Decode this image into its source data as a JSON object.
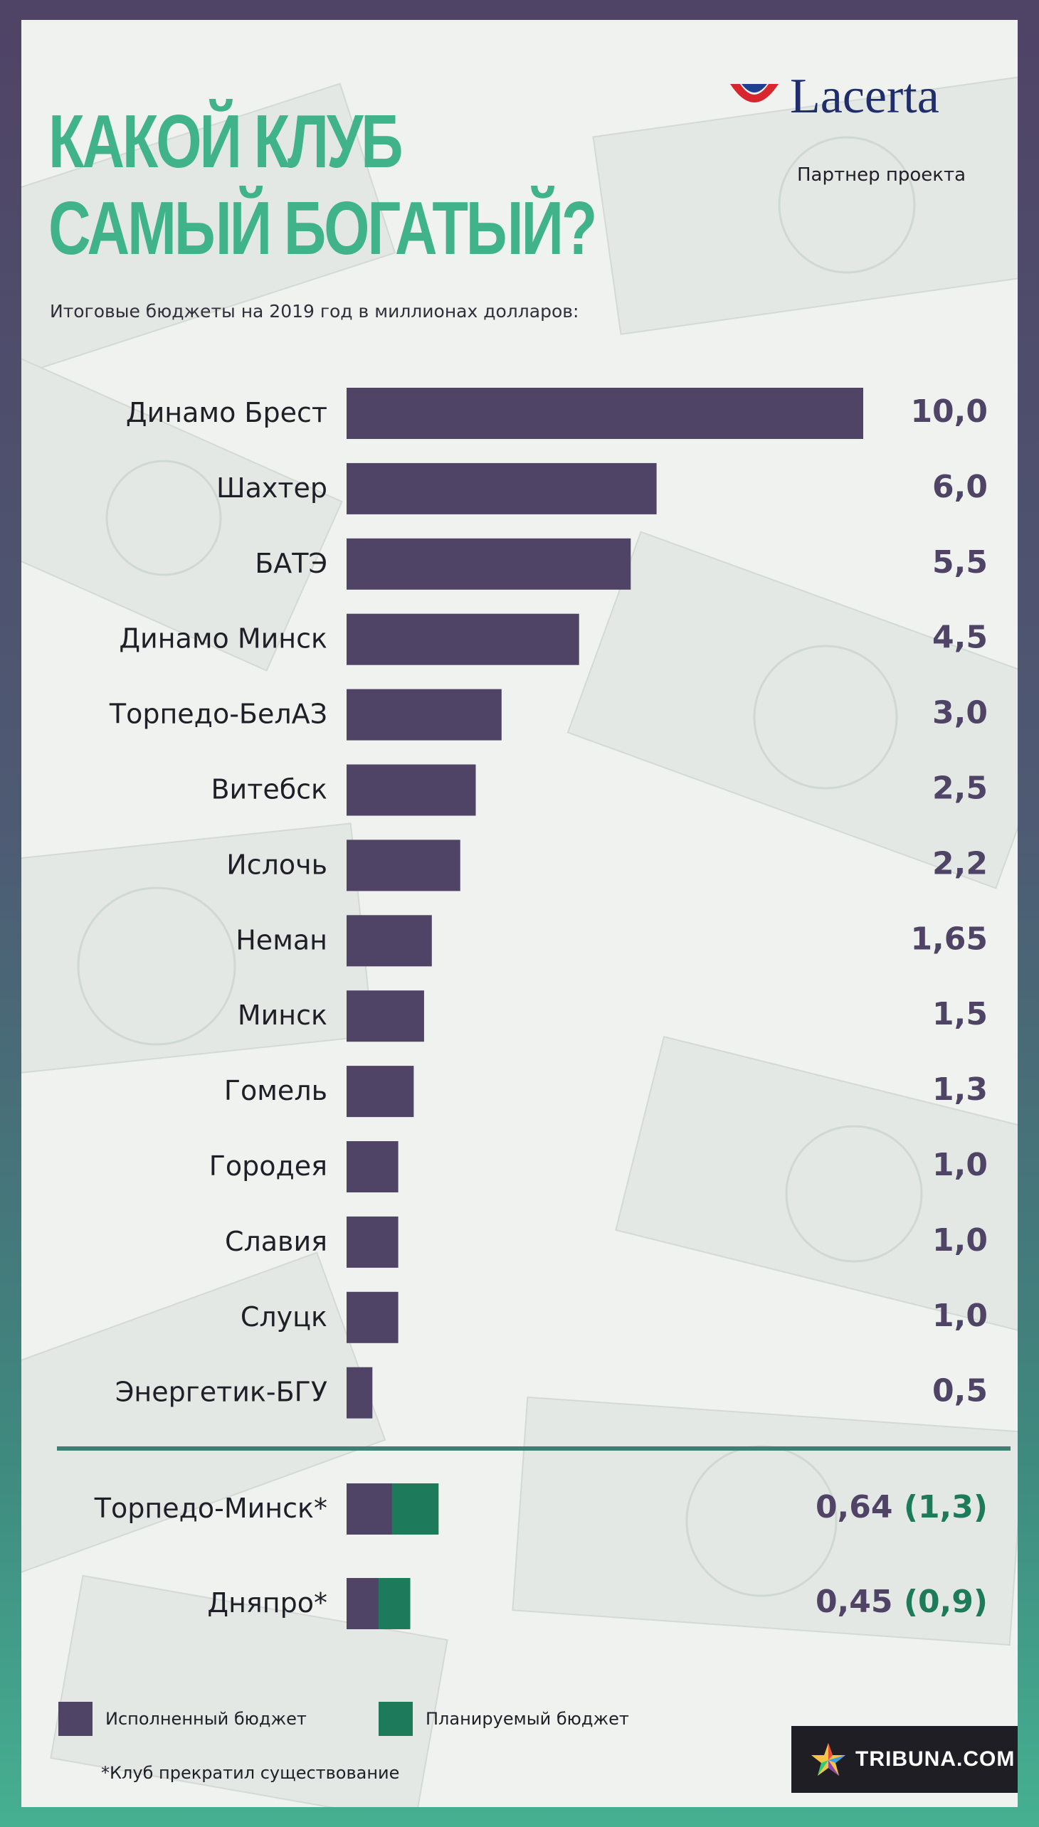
{
  "header": {
    "title_line1": "КАКОЙ КЛУБ",
    "title_line2": "САМЫЙ БОГАТЫЙ?",
    "subtitle": "Итоговые бюджеты на 2019 год в миллионах долларов:"
  },
  "sponsor": {
    "name": "Lacerta",
    "caption": "Партнер проекта"
  },
  "colors": {
    "title": "#41b38a",
    "executed": "#4f4366",
    "planned": "#1d7a5b",
    "planned_text": "#1d7a5b",
    "divider": "#3f7f73"
  },
  "chart_data": {
    "type": "bar",
    "orientation": "horizontal",
    "categories": [
      "Динамо Брест",
      "Шахтер",
      "БАТЭ",
      "Динамо Минск",
      "Торпедо-БелАЗ",
      "Витебск",
      "Ислочь",
      "Неман",
      "Минск",
      "Гомель",
      "Городея",
      "Славия",
      "Слуцк",
      "Энергетик-БГУ"
    ],
    "values": [
      10.0,
      6.0,
      5.5,
      4.5,
      3.0,
      2.5,
      2.2,
      1.65,
      1.5,
      1.3,
      1.0,
      1.0,
      1.0,
      0.5
    ],
    "value_labels": [
      "10,0",
      "6,0",
      "5,5",
      "4,5",
      "3,0",
      "2,5",
      "2,2",
      "1,65",
      "1,5",
      "1,3",
      "1,0",
      "1,0",
      "1,0",
      "0,5"
    ],
    "extra": {
      "categories": [
        "Торпедо-Минск*",
        "Дняпро*"
      ],
      "series": [
        {
          "name": "Исполненный бюджет",
          "values": [
            0.64,
            0.45
          ]
        },
        {
          "name": "Планируемый бюджет",
          "values": [
            1.3,
            0.9
          ]
        }
      ],
      "value_labels": [
        "0,64",
        "0,45"
      ],
      "planned_labels": [
        "(1,3)",
        "(0,9)"
      ]
    },
    "legend": {
      "position": "bottom-left",
      "items": [
        {
          "label": "Исполненный бюджет",
          "color": "#4f4366"
        },
        {
          "label": "Планируемый бюджет",
          "color": "#1d7a5b"
        }
      ]
    },
    "grid": false
  },
  "footnote": "*Клуб прекратил существование",
  "brand": "TRIBUNA.COM"
}
